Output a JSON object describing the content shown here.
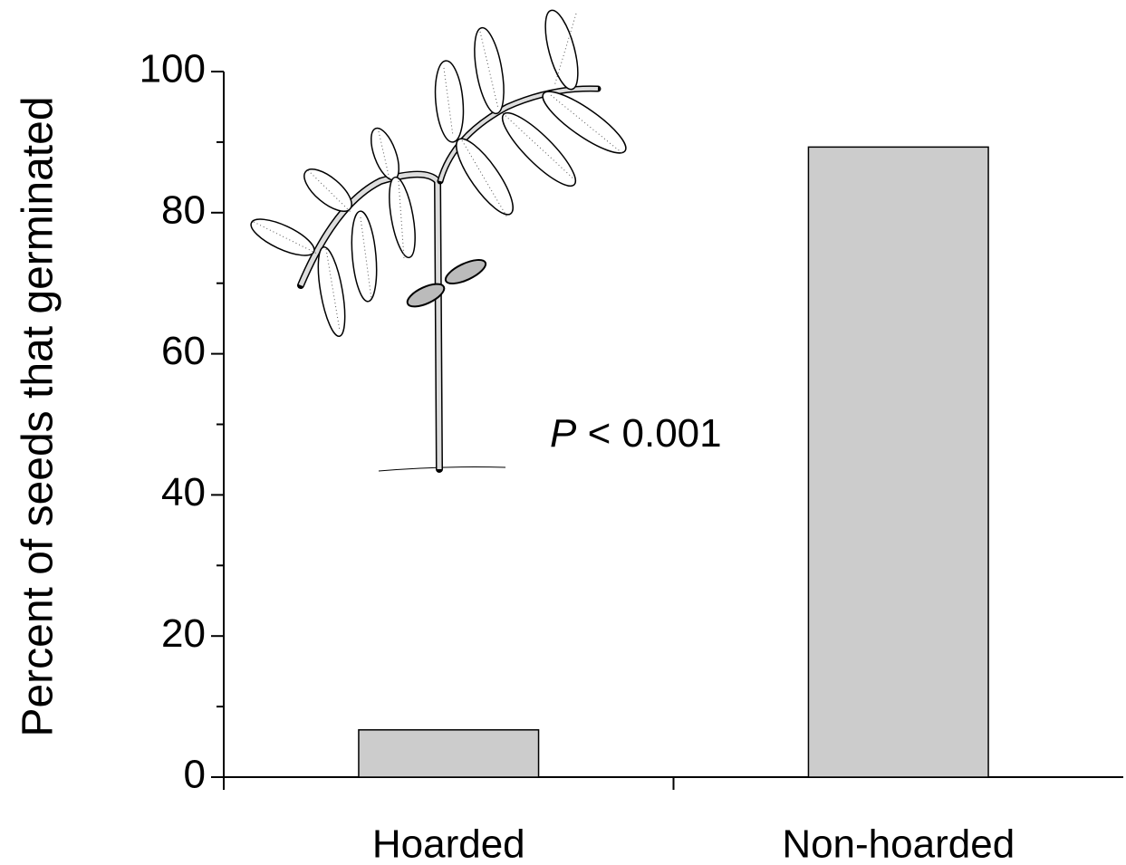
{
  "chart_data": {
    "type": "bar",
    "y_label": "Percent of seeds that germinated",
    "categories": [
      "Hoarded",
      "Non-hoarded"
    ],
    "values": [
      6.7,
      89.3
    ],
    "color": "#cccccc",
    "ylim": [
      0,
      100
    ],
    "yticks": [
      0,
      20,
      40,
      60,
      80,
      100
    ],
    "yminorticks": [
      10,
      30,
      50,
      70,
      90
    ],
    "annotation": "P < 0.001",
    "grid": false
  }
}
